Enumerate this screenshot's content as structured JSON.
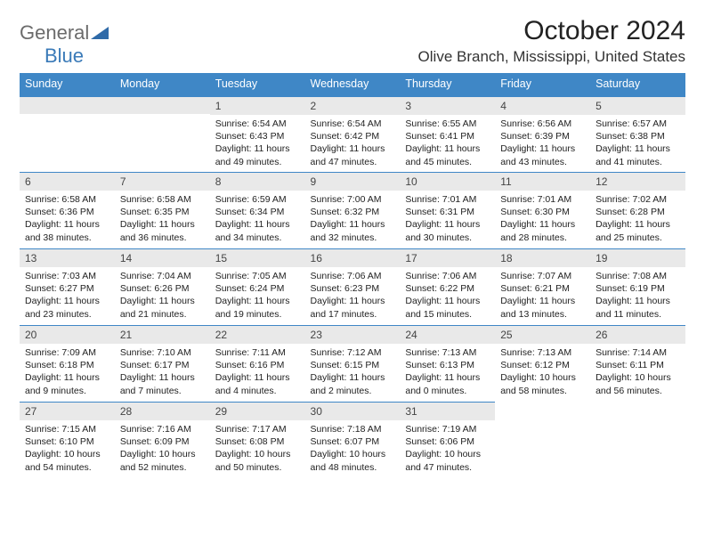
{
  "logo": {
    "part1": "General",
    "part2": "Blue"
  },
  "colors": {
    "brand": "#3f87c6",
    "gray": "#6b6b6b",
    "headerRow": "#e9e9e9"
  },
  "title": "October 2024",
  "location": "Olive Branch, Mississippi, United States",
  "weekdays": [
    "Sunday",
    "Monday",
    "Tuesday",
    "Wednesday",
    "Thursday",
    "Friday",
    "Saturday"
  ],
  "weeks": [
    [
      null,
      null,
      {
        "n": "1",
        "sunrise": "6:54 AM",
        "sunset": "6:43 PM",
        "daylight": "11 hours and 49 minutes."
      },
      {
        "n": "2",
        "sunrise": "6:54 AM",
        "sunset": "6:42 PM",
        "daylight": "11 hours and 47 minutes."
      },
      {
        "n": "3",
        "sunrise": "6:55 AM",
        "sunset": "6:41 PM",
        "daylight": "11 hours and 45 minutes."
      },
      {
        "n": "4",
        "sunrise": "6:56 AM",
        "sunset": "6:39 PM",
        "daylight": "11 hours and 43 minutes."
      },
      {
        "n": "5",
        "sunrise": "6:57 AM",
        "sunset": "6:38 PM",
        "daylight": "11 hours and 41 minutes."
      }
    ],
    [
      {
        "n": "6",
        "sunrise": "6:58 AM",
        "sunset": "6:36 PM",
        "daylight": "11 hours and 38 minutes."
      },
      {
        "n": "7",
        "sunrise": "6:58 AM",
        "sunset": "6:35 PM",
        "daylight": "11 hours and 36 minutes."
      },
      {
        "n": "8",
        "sunrise": "6:59 AM",
        "sunset": "6:34 PM",
        "daylight": "11 hours and 34 minutes."
      },
      {
        "n": "9",
        "sunrise": "7:00 AM",
        "sunset": "6:32 PM",
        "daylight": "11 hours and 32 minutes."
      },
      {
        "n": "10",
        "sunrise": "7:01 AM",
        "sunset": "6:31 PM",
        "daylight": "11 hours and 30 minutes."
      },
      {
        "n": "11",
        "sunrise": "7:01 AM",
        "sunset": "6:30 PM",
        "daylight": "11 hours and 28 minutes."
      },
      {
        "n": "12",
        "sunrise": "7:02 AM",
        "sunset": "6:28 PM",
        "daylight": "11 hours and 25 minutes."
      }
    ],
    [
      {
        "n": "13",
        "sunrise": "7:03 AM",
        "sunset": "6:27 PM",
        "daylight": "11 hours and 23 minutes."
      },
      {
        "n": "14",
        "sunrise": "7:04 AM",
        "sunset": "6:26 PM",
        "daylight": "11 hours and 21 minutes."
      },
      {
        "n": "15",
        "sunrise": "7:05 AM",
        "sunset": "6:24 PM",
        "daylight": "11 hours and 19 minutes."
      },
      {
        "n": "16",
        "sunrise": "7:06 AM",
        "sunset": "6:23 PM",
        "daylight": "11 hours and 17 minutes."
      },
      {
        "n": "17",
        "sunrise": "7:06 AM",
        "sunset": "6:22 PM",
        "daylight": "11 hours and 15 minutes."
      },
      {
        "n": "18",
        "sunrise": "7:07 AM",
        "sunset": "6:21 PM",
        "daylight": "11 hours and 13 minutes."
      },
      {
        "n": "19",
        "sunrise": "7:08 AM",
        "sunset": "6:19 PM",
        "daylight": "11 hours and 11 minutes."
      }
    ],
    [
      {
        "n": "20",
        "sunrise": "7:09 AM",
        "sunset": "6:18 PM",
        "daylight": "11 hours and 9 minutes."
      },
      {
        "n": "21",
        "sunrise": "7:10 AM",
        "sunset": "6:17 PM",
        "daylight": "11 hours and 7 minutes."
      },
      {
        "n": "22",
        "sunrise": "7:11 AM",
        "sunset": "6:16 PM",
        "daylight": "11 hours and 4 minutes."
      },
      {
        "n": "23",
        "sunrise": "7:12 AM",
        "sunset": "6:15 PM",
        "daylight": "11 hours and 2 minutes."
      },
      {
        "n": "24",
        "sunrise": "7:13 AM",
        "sunset": "6:13 PM",
        "daylight": "11 hours and 0 minutes."
      },
      {
        "n": "25",
        "sunrise": "7:13 AM",
        "sunset": "6:12 PM",
        "daylight": "10 hours and 58 minutes."
      },
      {
        "n": "26",
        "sunrise": "7:14 AM",
        "sunset": "6:11 PM",
        "daylight": "10 hours and 56 minutes."
      }
    ],
    [
      {
        "n": "27",
        "sunrise": "7:15 AM",
        "sunset": "6:10 PM",
        "daylight": "10 hours and 54 minutes."
      },
      {
        "n": "28",
        "sunrise": "7:16 AM",
        "sunset": "6:09 PM",
        "daylight": "10 hours and 52 minutes."
      },
      {
        "n": "29",
        "sunrise": "7:17 AM",
        "sunset": "6:08 PM",
        "daylight": "10 hours and 50 minutes."
      },
      {
        "n": "30",
        "sunrise": "7:18 AM",
        "sunset": "6:07 PM",
        "daylight": "10 hours and 48 minutes."
      },
      {
        "n": "31",
        "sunrise": "7:19 AM",
        "sunset": "6:06 PM",
        "daylight": "10 hours and 47 minutes."
      },
      null,
      null
    ]
  ]
}
